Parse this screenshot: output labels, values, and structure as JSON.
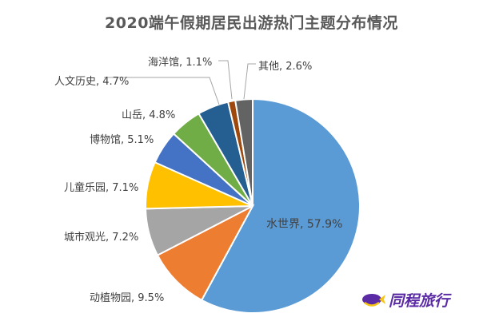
{
  "title": "2020端午假期居民出游热门主题分布情况",
  "brand": {
    "name": "同程旅行",
    "color": "#5b2ba6",
    "icon": "fish-logo-icon"
  },
  "chart_data": {
    "type": "pie",
    "title": "2020端午假期居民出游热门主题分布情况",
    "start_angle_deg": 0,
    "direction": "clockwise",
    "slices": [
      {
        "label": "水世界",
        "value": 57.9,
        "color": "#5b9bd5",
        "text": "水世界, 57.9%"
      },
      {
        "label": "动植物园",
        "value": 9.5,
        "color": "#ed7d31",
        "text": "动植物园, 9.5%"
      },
      {
        "label": "城市观光",
        "value": 7.2,
        "color": "#a5a5a5",
        "text": "城市观光, 7.2%"
      },
      {
        "label": "儿童乐园",
        "value": 7.1,
        "color": "#ffc000",
        "text": "儿童乐园, 7.1%"
      },
      {
        "label": "博物馆",
        "value": 5.1,
        "color": "#4472c4",
        "text": "博物馆, 5.1%"
      },
      {
        "label": "山岳",
        "value": 4.8,
        "color": "#70ad47",
        "text": "山岳, 4.8%"
      },
      {
        "label": "人文历史",
        "value": 4.7,
        "color": "#255e91",
        "text": "人文历史, 4.7%"
      },
      {
        "label": "海洋馆",
        "value": 1.1,
        "color": "#9e480e",
        "text": "海洋馆, 1.1%"
      },
      {
        "label": "其他",
        "value": 2.6,
        "color": "#636363",
        "text": "其他, 2.6%"
      }
    ]
  }
}
